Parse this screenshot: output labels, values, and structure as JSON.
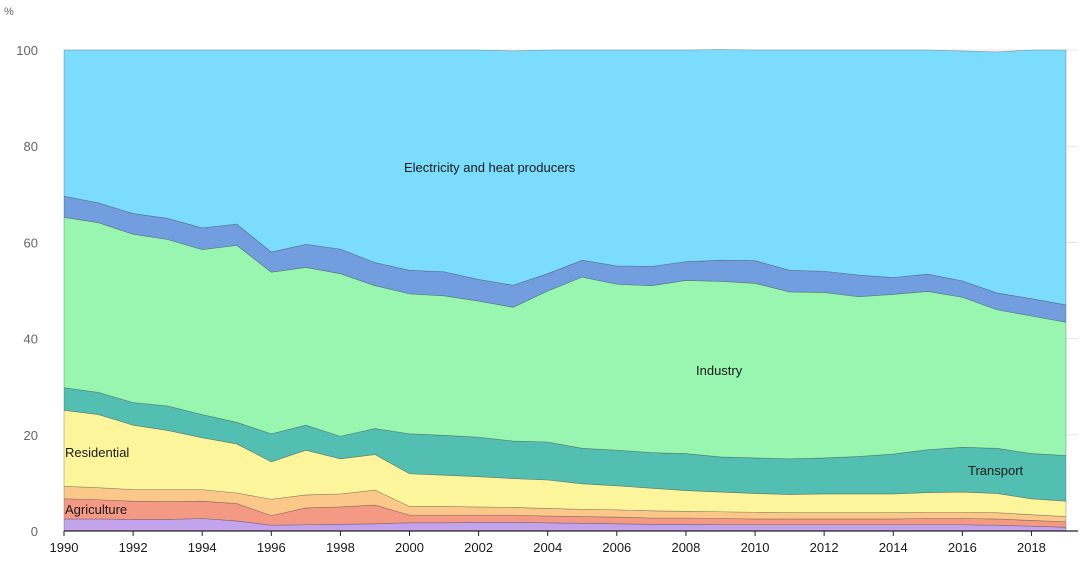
{
  "chart_data": {
    "type": "area",
    "stacked": true,
    "y_unit": "%",
    "ylim": [
      0,
      100
    ],
    "y_ticks": [
      0,
      20,
      40,
      60,
      80,
      100
    ],
    "x": [
      1990,
      1991,
      1992,
      1993,
      1994,
      1995,
      1996,
      1997,
      1998,
      1999,
      2000,
      2001,
      2002,
      2003,
      2004,
      2005,
      2006,
      2007,
      2008,
      2009,
      2010,
      2011,
      2012,
      2013,
      2014,
      2015,
      2016,
      2017,
      2018,
      2019
    ],
    "x_ticks": [
      1990,
      1992,
      1994,
      1996,
      1998,
      2000,
      2002,
      2004,
      2006,
      2008,
      2010,
      2012,
      2014,
      2016,
      2018
    ],
    "colors": {
      "s1": "#c3a3ec",
      "s2": "#f49a84",
      "s3": "#fbc88a",
      "s4": "#fdf59c",
      "s5": "#53bfb3",
      "s6": "#98f6b0",
      "s7": "#729edf",
      "s8": "#7bdcfd"
    },
    "series": [
      {
        "key": "s1",
        "name": "",
        "values": [
          2.5,
          2.5,
          2.4,
          2.4,
          2.6,
          2.1,
          1.2,
          1.3,
          1.4,
          1.5,
          1.7,
          1.7,
          1.8,
          1.8,
          1.7,
          1.6,
          1.5,
          1.4,
          1.4,
          1.3,
          1.3,
          1.3,
          1.3,
          1.3,
          1.3,
          1.3,
          1.3,
          1.2,
          1.0,
          0.8
        ]
      },
      {
        "key": "s2",
        "name": "Agriculture",
        "values": [
          4.2,
          4.0,
          3.8,
          3.7,
          3.6,
          3.6,
          2.0,
          3.5,
          3.6,
          3.9,
          1.6,
          1.6,
          1.5,
          1.5,
          1.4,
          1.4,
          1.4,
          1.3,
          1.3,
          1.3,
          1.2,
          1.2,
          1.2,
          1.2,
          1.2,
          1.3,
          1.3,
          1.3,
          1.2,
          1.1
        ]
      },
      {
        "key": "s3",
        "name": "",
        "values": [
          2.6,
          2.5,
          2.4,
          2.5,
          2.4,
          2.2,
          3.4,
          2.7,
          2.7,
          3.1,
          1.8,
          1.8,
          1.7,
          1.6,
          1.6,
          1.5,
          1.5,
          1.5,
          1.4,
          1.4,
          1.4,
          1.3,
          1.3,
          1.3,
          1.3,
          1.3,
          1.3,
          1.3,
          1.2,
          1.1
        ]
      },
      {
        "key": "s4",
        "name": "Residential",
        "values": [
          15.8,
          15.2,
          13.4,
          12.3,
          10.8,
          10.2,
          7.8,
          9.3,
          7.3,
          7.4,
          6.8,
          6.5,
          6.3,
          6.0,
          5.9,
          5.3,
          5.0,
          4.7,
          4.3,
          4.1,
          3.9,
          3.8,
          3.9,
          3.9,
          3.9,
          4.1,
          4.2,
          4.0,
          3.3,
          3.2
        ]
      },
      {
        "key": "s5",
        "name": "Transport",
        "values": [
          4.7,
          4.6,
          4.7,
          5.1,
          4.8,
          4.5,
          5.8,
          5.2,
          4.7,
          5.4,
          8.3,
          8.3,
          8.2,
          7.8,
          7.9,
          7.4,
          7.4,
          7.4,
          7.7,
          7.3,
          7.4,
          7.4,
          7.5,
          7.8,
          8.3,
          8.9,
          9.3,
          9.4,
          9.4,
          9.5
        ]
      },
      {
        "key": "s6",
        "name": "Industry",
        "values": [
          35.4,
          35.3,
          35.0,
          34.6,
          34.3,
          36.8,
          33.6,
          32.8,
          33.8,
          29.7,
          29.1,
          29.0,
          28.3,
          27.8,
          31.4,
          35.6,
          34.5,
          34.7,
          36.0,
          36.5,
          36.3,
          34.7,
          34.4,
          33.2,
          33.2,
          32.9,
          31.2,
          28.8,
          28.6,
          27.7
        ]
      },
      {
        "key": "s7",
        "name": "",
        "values": [
          4.4,
          4.1,
          4.3,
          4.4,
          4.5,
          4.4,
          4.2,
          4.8,
          5.1,
          4.8,
          4.9,
          5.0,
          4.5,
          4.6,
          3.6,
          3.5,
          3.8,
          4.0,
          3.9,
          4.4,
          4.7,
          4.5,
          4.4,
          4.5,
          3.5,
          3.6,
          3.4,
          3.5,
          3.6,
          3.6
        ]
      },
      {
        "key": "s8",
        "name": "Electricity and heat producers",
        "values": [
          30.4,
          31.8,
          34.0,
          35.0,
          37.0,
          36.2,
          42.0,
          40.4,
          41.4,
          44.2,
          45.8,
          46.1,
          47.7,
          48.7,
          46.5,
          43.7,
          44.9,
          45.0,
          44.0,
          43.8,
          43.8,
          45.8,
          46.0,
          46.8,
          47.3,
          46.6,
          47.8,
          50.1,
          51.7,
          53.0
        ]
      }
    ],
    "labels": {
      "electricity": "Electricity and heat producers",
      "industry": "Industry",
      "transport": "Transport",
      "residential": "Residential",
      "agriculture": "Agriculture"
    },
    "title": "",
    "xlabel": "",
    "ylabel": "%"
  }
}
